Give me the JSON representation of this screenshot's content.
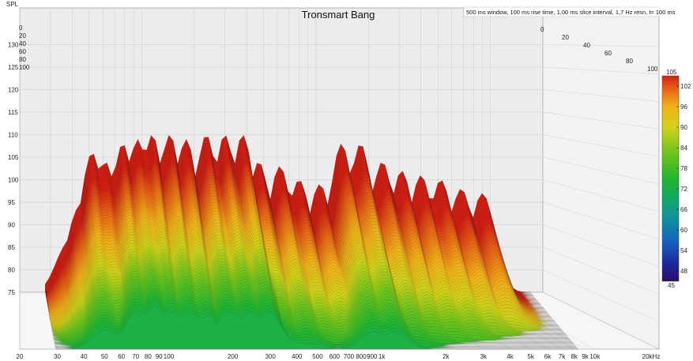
{
  "chart_data": {
    "type": "waterfall",
    "title": "Tronsmart Bang",
    "info": "500 ms window, 100 ms rise time, 1,00 ms slice interval, 1,7 Hz resn, t= 100 ms",
    "ylabel": "SPL",
    "x_scale": "log",
    "xlim": [
      20,
      20000
    ],
    "ylim": [
      75,
      132
    ],
    "x_ticks": [
      "20",
      "30",
      "40",
      "50",
      "60",
      "70",
      "80",
      "90",
      "100",
      "200",
      "300",
      "400",
      "500",
      "600",
      "700",
      "800",
      "900",
      "1k",
      "2k",
      "3k",
      "4k",
      "5k",
      "6k",
      "7k",
      "8k",
      "9k",
      "10k",
      "20kHz"
    ],
    "y_ticks": [
      75,
      80,
      85,
      90,
      95,
      100,
      105,
      110,
      115,
      120,
      125,
      130
    ],
    "depth_ticks": [
      "0",
      "20",
      "40",
      "60",
      "80",
      "100"
    ],
    "colorbar": {
      "min": 45,
      "max": 105,
      "ticks": [
        48,
        54,
        60,
        66,
        72,
        78,
        84,
        90,
        96,
        102
      ],
      "colors": [
        "#2b0a6e",
        "#1a2fa0",
        "#1565c0",
        "#0f8fa0",
        "#12a86a",
        "#22b530",
        "#6cc41c",
        "#cfd21a",
        "#f0b21a",
        "#e86a14",
        "#d21e12"
      ]
    },
    "peaks": [
      {
        "f": 38,
        "spl": 86,
        "decay": 0.35
      },
      {
        "f": 44,
        "spl": 94,
        "decay": 0.4
      },
      {
        "f": 52,
        "spl": 106,
        "decay": 0.55
      },
      {
        "f": 62,
        "spl": 104,
        "decay": 0.55
      },
      {
        "f": 78,
        "spl": 108,
        "decay": 0.5
      },
      {
        "f": 95,
        "spl": 109,
        "decay": 0.5
      },
      {
        "f": 115,
        "spl": 110,
        "decay": 0.55
      },
      {
        "f": 145,
        "spl": 110,
        "decay": 0.55
      },
      {
        "f": 180,
        "spl": 109,
        "decay": 0.55
      },
      {
        "f": 235,
        "spl": 110,
        "decay": 0.55
      },
      {
        "f": 300,
        "spl": 110,
        "decay": 0.55
      },
      {
        "f": 380,
        "spl": 110,
        "decay": 0.55
      },
      {
        "f": 470,
        "spl": 104,
        "decay": 0.55
      },
      {
        "f": 620,
        "spl": 103,
        "decay": 0.55
      },
      {
        "f": 800,
        "spl": 100,
        "decay": 0.55
      },
      {
        "f": 1050,
        "spl": 99,
        "decay": 0.55
      },
      {
        "f": 1400,
        "spl": 108,
        "decay": 0.6
      },
      {
        "f": 1800,
        "spl": 108,
        "decay": 0.6
      },
      {
        "f": 2400,
        "spl": 104,
        "decay": 0.6
      },
      {
        "f": 3100,
        "spl": 102,
        "decay": 0.6
      },
      {
        "f": 4000,
        "spl": 101,
        "decay": 0.6
      },
      {
        "f": 5200,
        "spl": 100,
        "decay": 0.6
      },
      {
        "f": 6800,
        "spl": 98,
        "decay": 0.6
      },
      {
        "f": 9000,
        "spl": 97,
        "decay": 0.65
      }
    ],
    "grid": true,
    "legend": "none"
  }
}
